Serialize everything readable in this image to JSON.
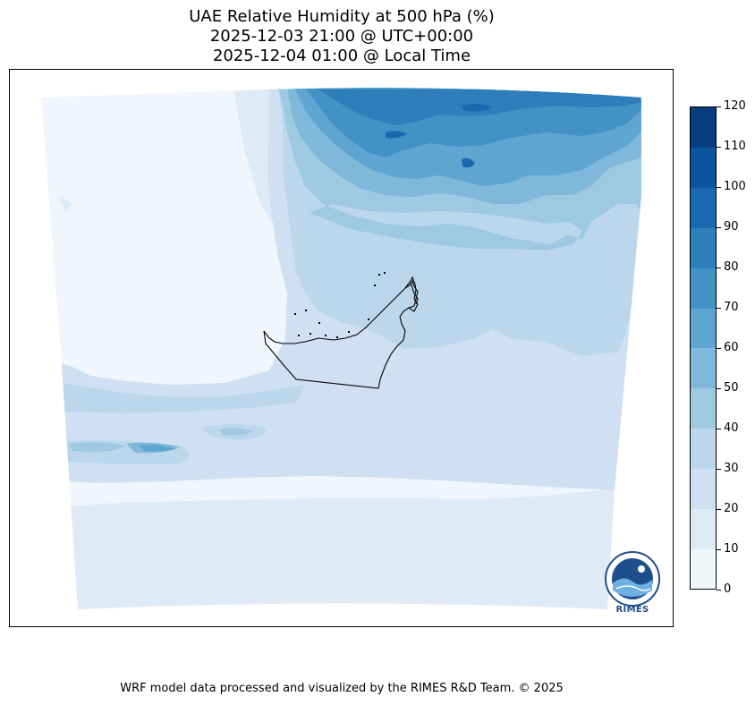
{
  "title": {
    "line1": "UAE Relative Humidity at 500 hPa (%)",
    "line2": "2025-12-03 21:00 @ UTC+00:00",
    "line3": "2025-12-04 01:00 @ Local Time"
  },
  "colorbar": {
    "min": 0,
    "max": 120,
    "step": 10,
    "ticks": [
      "0",
      "10",
      "20",
      "30",
      "40",
      "50",
      "60",
      "70",
      "80",
      "90",
      "100",
      "110",
      "120"
    ],
    "colors": [
      "#f0f6fc",
      "#deebf7",
      "#cee0f2",
      "#bcd7eb",
      "#9ecae1",
      "#7fb8da",
      "#5ea5d1",
      "#4292c6",
      "#2f7ebc",
      "#1a69b0",
      "#0b559f",
      "#083d7f"
    ]
  },
  "logo": {
    "text": "RIMES",
    "icon": "rimes-logo-icon"
  },
  "footer": "WRF model data processed and visualized by the RIMES R&D Team. © 2025",
  "colors": {
    "land_outline": "#000000",
    "frame": "#000000"
  }
}
